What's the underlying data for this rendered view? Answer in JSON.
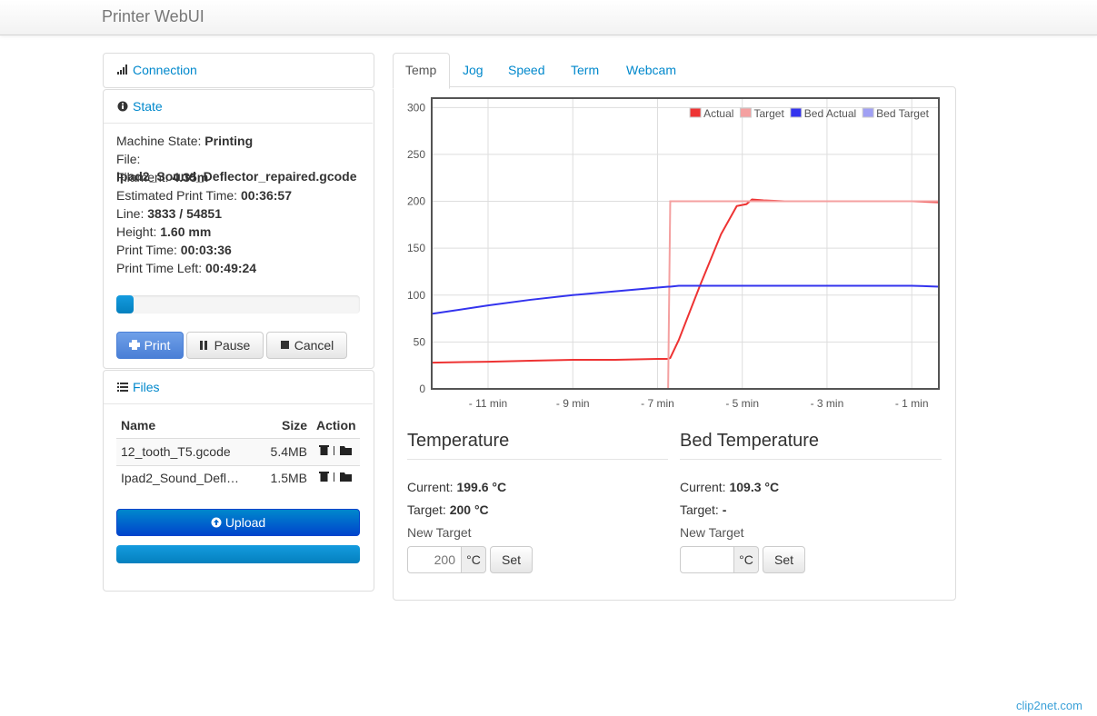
{
  "navbar": {
    "brand": "Printer WebUI"
  },
  "connection": {
    "title": "Connection"
  },
  "state": {
    "title": "State",
    "fields": [
      [
        "Machine State:",
        "Printing"
      ],
      [
        "File:",
        ""
      ],
      [
        "Filament:",
        "4.35m"
      ],
      [
        "Estimated Print Time:",
        "00:36:57"
      ],
      [
        "Line:",
        "3833 / 54851"
      ],
      [
        "Height:",
        "1.60 mm"
      ],
      [
        "Print Time:",
        "00:03:36"
      ],
      [
        "Print Time Left:",
        "00:49:24"
      ]
    ],
    "file_name": "Ipad2_Sound_Deflector_repaired.gcode",
    "progress": 7,
    "buttons": [
      "Print",
      "Pause",
      "Cancel"
    ]
  },
  "files": {
    "title": "Files",
    "columns": [
      "Name",
      "Size",
      "Action"
    ],
    "rows": [
      [
        "12_tooth_T5.gcode",
        "5.4MB"
      ],
      [
        "Ipad2_Sound_Defl…",
        "1.5MB"
      ]
    ],
    "upload": "Upload"
  },
  "tabs": [
    "Temp",
    "Jog",
    "Speed",
    "Term",
    "Webcam"
  ],
  "chart_data": {
    "type": "line",
    "x": [
      -12.33,
      -11,
      -10,
      -9,
      -8,
      -7,
      -6.75,
      -6.7,
      -6.5,
      -6,
      -5.5,
      -5.13,
      -4.9,
      -4.77,
      -4.5,
      -4,
      -3,
      -2,
      -1,
      -0.36
    ],
    "series": [
      {
        "name": "Actual",
        "color": "#ee3333",
        "values": [
          28,
          29,
          30,
          31,
          31,
          32,
          32,
          33,
          52,
          110,
          165,
          195,
          197,
          202,
          201,
          200,
          200,
          200,
          200,
          199
        ]
      },
      {
        "name": "Target",
        "color": "#f4a0a0",
        "values": [
          0,
          0,
          0,
          0,
          0,
          0,
          0,
          200,
          200,
          200,
          200,
          200,
          200,
          200,
          200,
          200,
          200,
          200,
          200,
          200
        ]
      },
      {
        "name": "Bed Actual",
        "color": "#3333ee",
        "values": [
          80,
          89,
          95,
          100,
          104,
          108,
          109,
          109,
          110,
          110,
          110,
          110,
          110,
          110,
          110,
          110,
          110,
          110,
          110,
          109
        ]
      },
      {
        "name": "Bed Target",
        "color": "#a0a0f4",
        "values": [
          0,
          0,
          0,
          0,
          0,
          0,
          0,
          0,
          0,
          0,
          0,
          0,
          0,
          0,
          0,
          0,
          0,
          0,
          0,
          0
        ]
      }
    ],
    "xlim": [
      -12.33,
      -0.36
    ],
    "xticks": [
      {
        "value": -11,
        "label": "- 11 min"
      },
      {
        "value": -9,
        "label": "- 9 min"
      },
      {
        "value": -7,
        "label": "- 7 min"
      },
      {
        "value": -5,
        "label": "- 5 min"
      },
      {
        "value": -3,
        "label": "- 3 min"
      },
      {
        "value": -1,
        "label": "- 1 min"
      }
    ],
    "ylim": [
      0,
      310
    ],
    "yticks": [
      0,
      50,
      100,
      150,
      200,
      250,
      300
    ],
    "grid": true,
    "legend": "top-right"
  },
  "temperature": {
    "title": "Temperature",
    "current_label": "Current:",
    "current": "199.6 °C",
    "target_label": "Target:",
    "target": "200 °C",
    "new_target": "New Target",
    "placeholder": "200",
    "unit": "°C",
    "set": "Set"
  },
  "bed": {
    "title": "Bed Temperature",
    "current_label": "Current:",
    "current": "109.3 °C",
    "target_label": "Target:",
    "target": "-",
    "new_target": "New Target",
    "unit": "°C",
    "set": "Set"
  },
  "watermark": "clip2net.com"
}
